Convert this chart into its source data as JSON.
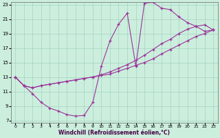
{
  "xlabel": "Windchill (Refroidissement éolien,°C)",
  "bg_color": "#cceedd",
  "line_color": "#993399",
  "xmin": 0,
  "xmax": 23,
  "ymin": 7,
  "ymax": 23,
  "yticks": [
    7,
    9,
    11,
    13,
    15,
    17,
    19,
    21,
    23
  ],
  "xticks": [
    0,
    1,
    2,
    3,
    4,
    5,
    6,
    7,
    8,
    9,
    10,
    11,
    12,
    13,
    14,
    15,
    16,
    17,
    18,
    19,
    20,
    21,
    22,
    23
  ],
  "curve1_x": [
    0,
    1,
    2,
    3,
    4,
    5,
    6,
    7,
    8,
    9,
    10,
    11,
    12,
    13,
    14,
    15,
    16,
    17,
    18,
    19,
    20,
    21,
    22,
    23
  ],
  "curve1_y": [
    13.0,
    11.8,
    10.7,
    9.5,
    8.7,
    8.3,
    7.8,
    7.6,
    7.7,
    9.5,
    14.5,
    18.0,
    20.3,
    21.8,
    14.5,
    23.2,
    23.3,
    22.5,
    22.3,
    21.3,
    20.5,
    20.0,
    19.3,
    19.5
  ],
  "curve2_x": [
    0,
    1,
    2,
    3,
    4,
    5,
    6,
    7,
    8,
    9,
    10,
    11,
    12,
    13,
    14,
    15,
    16,
    17,
    18,
    19,
    20,
    21,
    22,
    23
  ],
  "curve2_y": [
    13.0,
    11.8,
    11.5,
    11.8,
    12.0,
    12.2,
    12.4,
    12.6,
    12.8,
    13.0,
    13.3,
    13.7,
    14.2,
    14.7,
    15.3,
    16.0,
    16.8,
    17.6,
    18.2,
    19.0,
    19.6,
    20.0,
    20.2,
    19.5
  ],
  "curve3_x": [
    0,
    1,
    2,
    3,
    4,
    5,
    6,
    7,
    8,
    9,
    10,
    11,
    12,
    13,
    14,
    15,
    16,
    17,
    18,
    19,
    20,
    21,
    22,
    23
  ],
  "curve3_y": [
    13.0,
    11.8,
    11.5,
    11.8,
    12.0,
    12.2,
    12.4,
    12.6,
    12.8,
    13.0,
    13.2,
    13.4,
    13.8,
    14.2,
    14.6,
    15.0,
    15.5,
    16.2,
    16.8,
    17.4,
    18.0,
    18.6,
    19.0,
    19.5
  ]
}
